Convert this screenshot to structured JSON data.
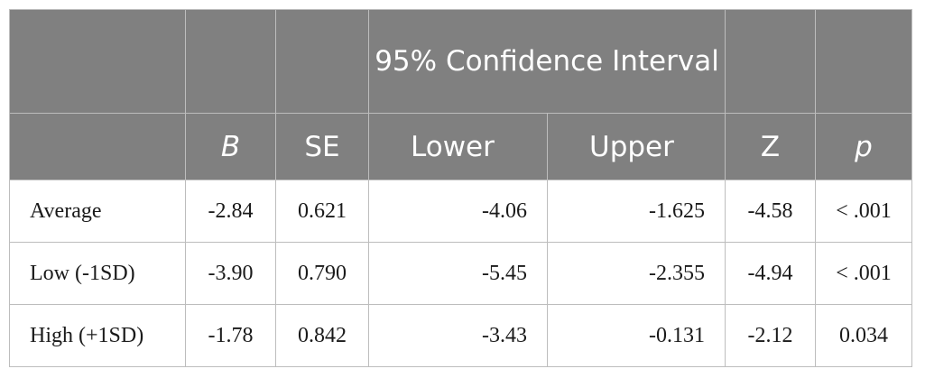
{
  "header": {
    "group_label": "95% Confidence Interval",
    "columns": [
      "B",
      "SE",
      "Lower",
      "Upper",
      "Z",
      "p"
    ]
  },
  "rows": [
    {
      "label": "Average",
      "B": "-2.84",
      "SE": "0.621",
      "Lower": "-4.06",
      "Upper": "-1.625",
      "Z": "-4.58",
      "p": "< .001"
    },
    {
      "label": "Low (-1SD)",
      "B": "-3.90",
      "SE": "0.790",
      "Lower": "-5.45",
      "Upper": "-2.355",
      "Z": "-4.94",
      "p": "< .001"
    },
    {
      "label": "High (+1SD)",
      "B": "-1.78",
      "SE": "0.842",
      "Lower": "-3.43",
      "Upper": "-0.131",
      "Z": "-2.12",
      "p": "0.034"
    }
  ],
  "colors": {
    "header_bg": "#808080",
    "header_text": "#ffffff",
    "border": "#bdbdbd",
    "body_text": "#1a1a1a"
  }
}
